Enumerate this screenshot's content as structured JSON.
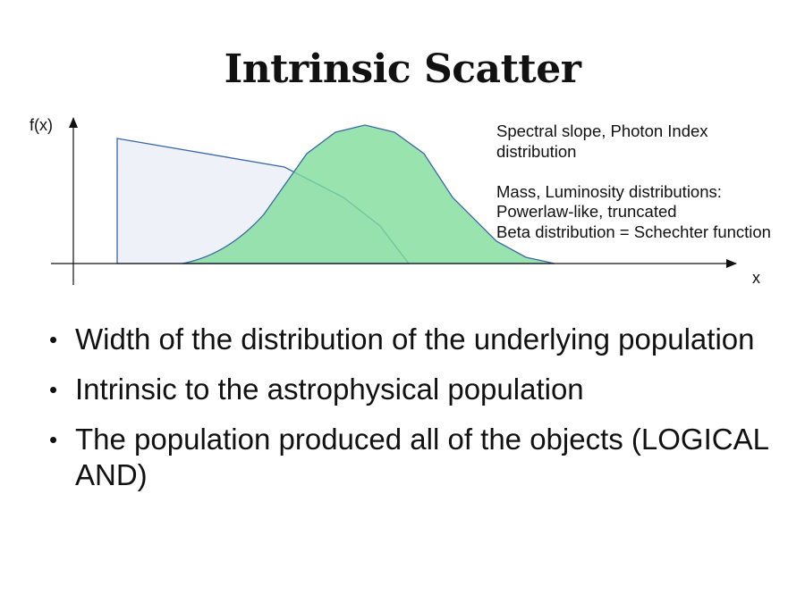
{
  "title": "Intrinsic Scatter",
  "diagram": {
    "y_axis_label": "f(x)",
    "x_axis_label": "x",
    "annotation_lines": [
      "Spectral slope, Photon Index",
      "distribution",
      "",
      "Mass, Luminosity distributions:",
      "Powerlaw-like, truncated",
      "Beta distribution = Schechter function"
    ],
    "colors": {
      "truncated_powerlaw_fill": "#eef2f8",
      "bell_curve_fill": "#7fdc9b",
      "outline": "#3a68a8",
      "axis": "#111111"
    }
  },
  "bullets": [
    {
      "symbol": "•",
      "text": "Width of the distribution of the underlying population"
    },
    {
      "symbol": "•",
      "text": "Intrinsic to the astrophysical population"
    },
    {
      "symbol": "•",
      "text": "The population produced all of the objects (LOGICAL AND)"
    }
  ]
}
